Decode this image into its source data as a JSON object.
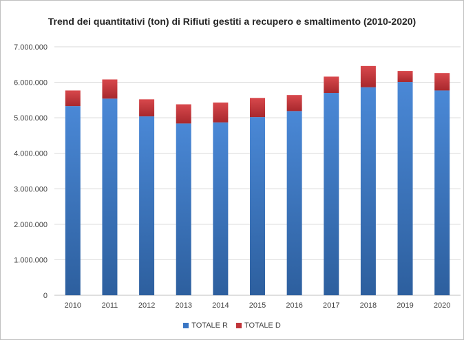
{
  "chart_data": {
    "type": "bar",
    "stacked": true,
    "title": "Trend dei quantitativi (ton) di Rifiuti gestiti a recupero e smaltimento (2010-2020)",
    "xlabel": "",
    "ylabel": "",
    "categories": [
      "2010",
      "2011",
      "2012",
      "2013",
      "2014",
      "2015",
      "2016",
      "2017",
      "2018",
      "2019",
      "2020"
    ],
    "ylim": [
      0,
      7000000
    ],
    "yticks": [
      0,
      1000000,
      2000000,
      3000000,
      4000000,
      5000000,
      6000000,
      7000000
    ],
    "ytick_labels": [
      "0",
      "1.000.000",
      "2.000.000",
      "3.000.000",
      "4.000.000",
      "5.000.000",
      "6.000.000",
      "7.000.000"
    ],
    "grid": true,
    "legend_position": "bottom",
    "series": [
      {
        "name": "TOTALE R",
        "color": "#3a76c4",
        "values": [
          5330000,
          5540000,
          5040000,
          4840000,
          4870000,
          5020000,
          5190000,
          5700000,
          5860000,
          6010000,
          5770000
        ]
      },
      {
        "name": "TOTALE D",
        "color": "#c0353a",
        "values": [
          440000,
          540000,
          480000,
          540000,
          560000,
          540000,
          450000,
          460000,
          600000,
          310000,
          490000
        ]
      }
    ]
  }
}
